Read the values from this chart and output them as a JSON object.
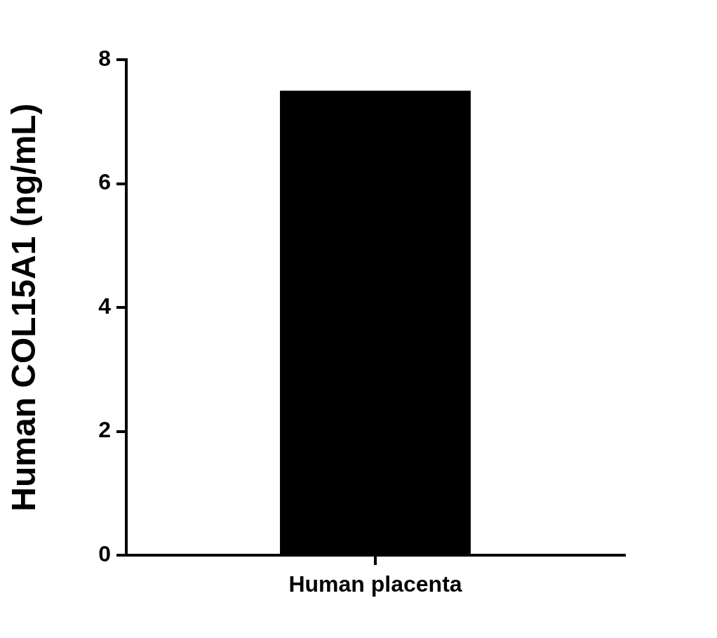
{
  "chart_data": {
    "type": "bar",
    "ylabel": "Human COL15A1 (ng/mL)",
    "categories": [
      "Human placenta"
    ],
    "values": [
      7.5
    ],
    "color": "#000000",
    "ylim": [
      0,
      8
    ],
    "yticks": [
      0,
      2,
      4,
      6,
      8
    ]
  }
}
